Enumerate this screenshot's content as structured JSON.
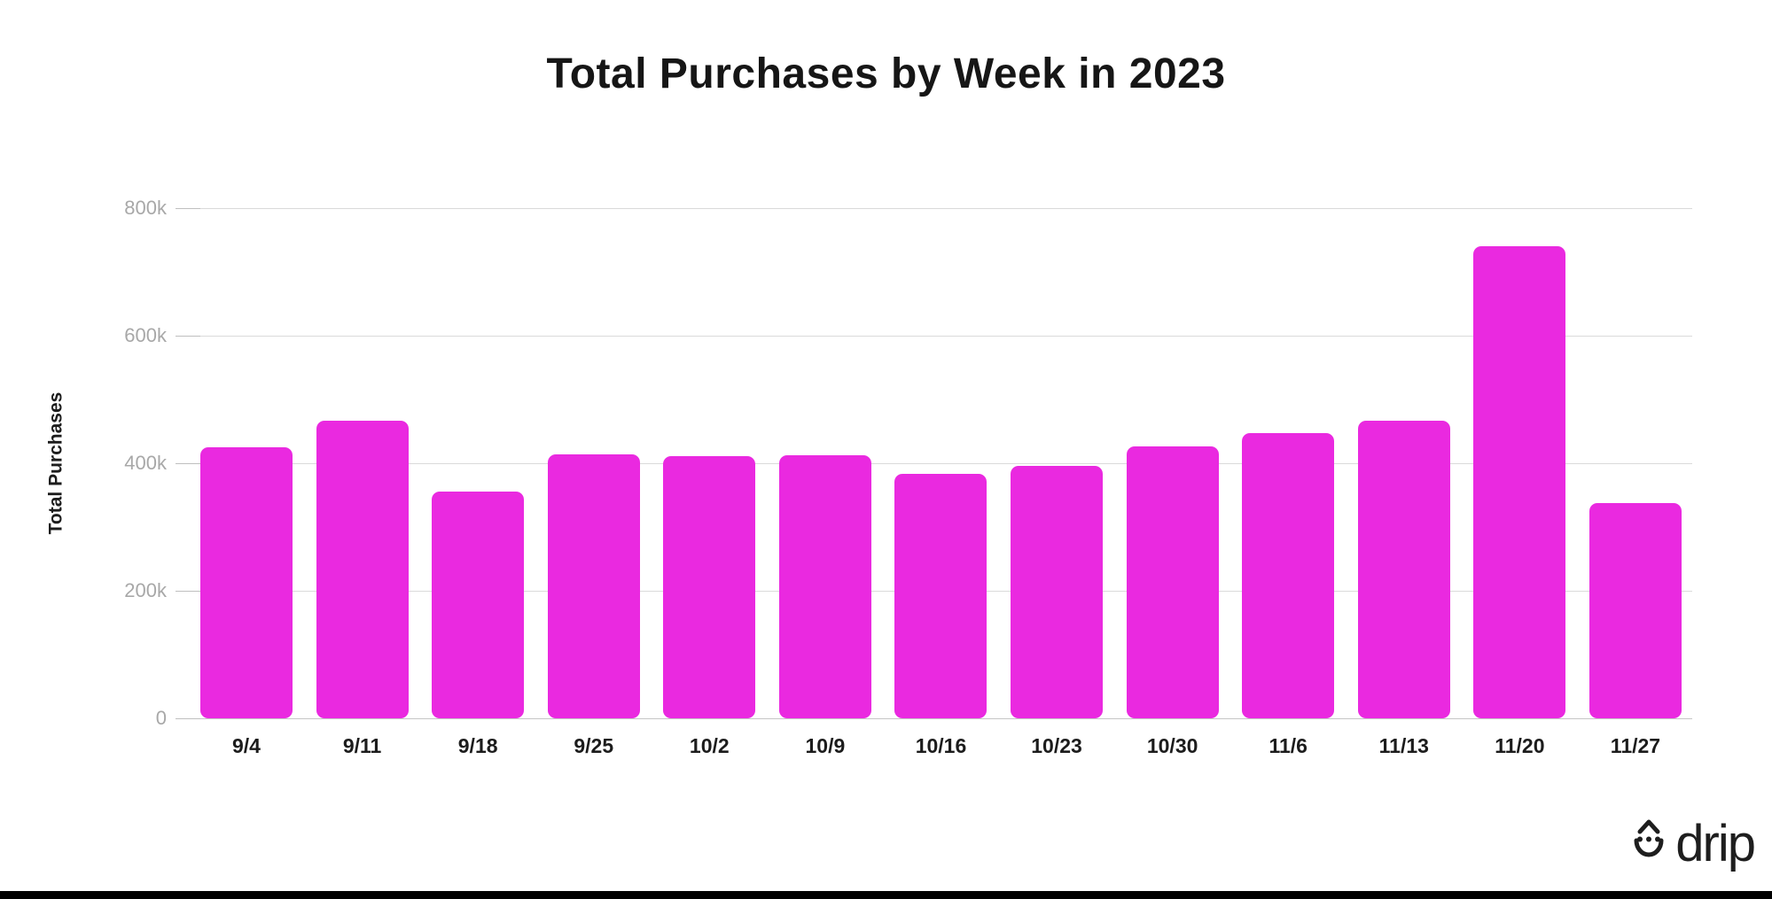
{
  "chart_data": {
    "type": "bar",
    "title": "Total Purchases by Week in 2023",
    "ylabel": "Total Purchases",
    "xlabel": "",
    "categories": [
      "9/4",
      "9/11",
      "9/18",
      "9/25",
      "10/2",
      "10/9",
      "10/16",
      "10/23",
      "10/30",
      "11/6",
      "11/13",
      "11/20",
      "11/27"
    ],
    "values": [
      425000,
      467000,
      355000,
      414000,
      411000,
      413000,
      383000,
      396000,
      426000,
      447000,
      467000,
      740000,
      338000
    ],
    "ylim": [
      0,
      800000
    ],
    "yticks": [
      {
        "value": 0,
        "label": "0"
      },
      {
        "value": 200000,
        "label": "200k"
      },
      {
        "value": 400000,
        "label": "400k"
      },
      {
        "value": 600000,
        "label": "600k"
      },
      {
        "value": 800000,
        "label": "800k"
      }
    ],
    "grid": "horizontal",
    "legend": "none",
    "bar_color": "#EA29E0"
  },
  "branding": {
    "logo_text": "drip"
  },
  "colors": {
    "background": "#FFFFFF",
    "title_text": "#161616",
    "axis_label_text": "#1C1C1C",
    "tick_label_text": "#A8A8A8",
    "gridline": "#DADADA",
    "baseline": "#C6C6C6",
    "tick_dash": "#BFBFBF",
    "logo": "#1E1E1E",
    "footer_bar": "#000000"
  }
}
